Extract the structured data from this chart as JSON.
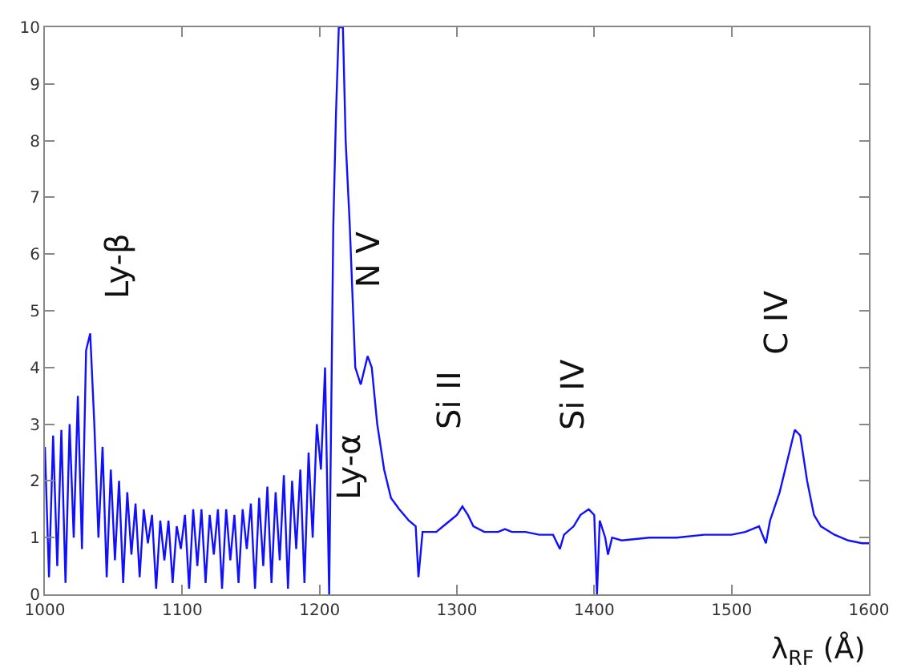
{
  "chart_data": {
    "type": "line",
    "xlabel": "λ$_{RF}$ (Å)",
    "x": [
      1000,
      1003,
      1006,
      1009,
      1012,
      1015,
      1018,
      1021,
      1024,
      1027,
      1030,
      1033,
      1036,
      1039,
      1042,
      1045,
      1048,
      1051,
      1054,
      1057,
      1060,
      1063,
      1066,
      1069,
      1072,
      1075,
      1078,
      1081,
      1084,
      1087,
      1090,
      1093,
      1096,
      1099,
      1102,
      1105,
      1108,
      1111,
      1114,
      1117,
      1120,
      1123,
      1126,
      1129,
      1132,
      1135,
      1138,
      1141,
      1144,
      1147,
      1150,
      1153,
      1156,
      1159,
      1162,
      1165,
      1168,
      1171,
      1174,
      1177,
      1180,
      1183,
      1186,
      1189,
      1192,
      1195,
      1198,
      1201,
      1204,
      1207,
      1210,
      1212,
      1214,
      1217,
      1219,
      1222,
      1226,
      1230,
      1235,
      1238,
      1242,
      1247,
      1252,
      1258,
      1265,
      1270,
      1272,
      1275,
      1280,
      1285,
      1290,
      1295,
      1300,
      1304,
      1308,
      1312,
      1320,
      1330,
      1335,
      1340,
      1350,
      1360,
      1370,
      1375,
      1378,
      1385,
      1390,
      1396,
      1400,
      1402,
      1404,
      1408,
      1410,
      1413,
      1420,
      1440,
      1460,
      1480,
      1500,
      1510,
      1520,
      1525,
      1528,
      1535,
      1540,
      1546,
      1550,
      1555,
      1560,
      1565,
      1575,
      1585,
      1595,
      1600
    ],
    "series": [
      {
        "color": "#1010ff",
        "values": [
          2.6,
          0.3,
          2.8,
          0.5,
          2.9,
          0.2,
          3.0,
          1.0,
          3.5,
          0.8,
          4.3,
          4.6,
          3.0,
          1.0,
          2.6,
          0.3,
          2.2,
          0.6,
          2.0,
          0.2,
          1.8,
          0.7,
          1.6,
          0.3,
          1.5,
          0.9,
          1.4,
          0.1,
          1.3,
          0.6,
          1.3,
          0.2,
          1.2,
          0.8,
          1.4,
          0.1,
          1.5,
          0.5,
          1.5,
          0.2,
          1.4,
          0.7,
          1.5,
          0.1,
          1.5,
          0.6,
          1.4,
          0.2,
          1.5,
          0.8,
          1.6,
          0.1,
          1.7,
          0.5,
          1.9,
          0.2,
          1.8,
          0.6,
          2.1,
          0.1,
          2.0,
          0.8,
          2.2,
          0.2,
          2.5,
          1.0,
          3.0,
          2.2,
          4.0,
          0.0,
          6.5,
          8.5,
          10,
          10,
          8.0,
          6.5,
          4.0,
          3.7,
          4.2,
          4.0,
          3.0,
          2.2,
          1.7,
          1.5,
          1.3,
          1.2,
          0.3,
          1.1,
          1.1,
          1.1,
          1.2,
          1.3,
          1.4,
          1.55,
          1.4,
          1.2,
          1.1,
          1.1,
          1.15,
          1.1,
          1.1,
          1.05,
          1.05,
          0.8,
          1.05,
          1.2,
          1.4,
          1.5,
          1.4,
          0.0,
          1.3,
          1.0,
          0.7,
          1.0,
          0.95,
          1.0,
          1.0,
          1.05,
          1.05,
          1.1,
          1.2,
          0.9,
          1.3,
          1.8,
          2.3,
          2.9,
          2.8,
          2.0,
          1.4,
          1.2,
          1.05,
          0.95,
          0.9,
          0.9
        ]
      }
    ],
    "xlim": [
      1000,
      1600
    ],
    "xticks": [
      1000,
      1100,
      1200,
      1300,
      1400,
      1500,
      1600
    ],
    "ylim": [
      0,
      10
    ],
    "yticks": [
      0,
      1,
      2,
      3,
      4,
      5,
      6,
      7,
      8,
      9,
      10
    ],
    "annotations": [
      "Ly-β",
      "Ly-α",
      "N V",
      "Si II",
      "Si IV",
      "C IV"
    ],
    "marker": "none",
    "line_style": "solid"
  }
}
